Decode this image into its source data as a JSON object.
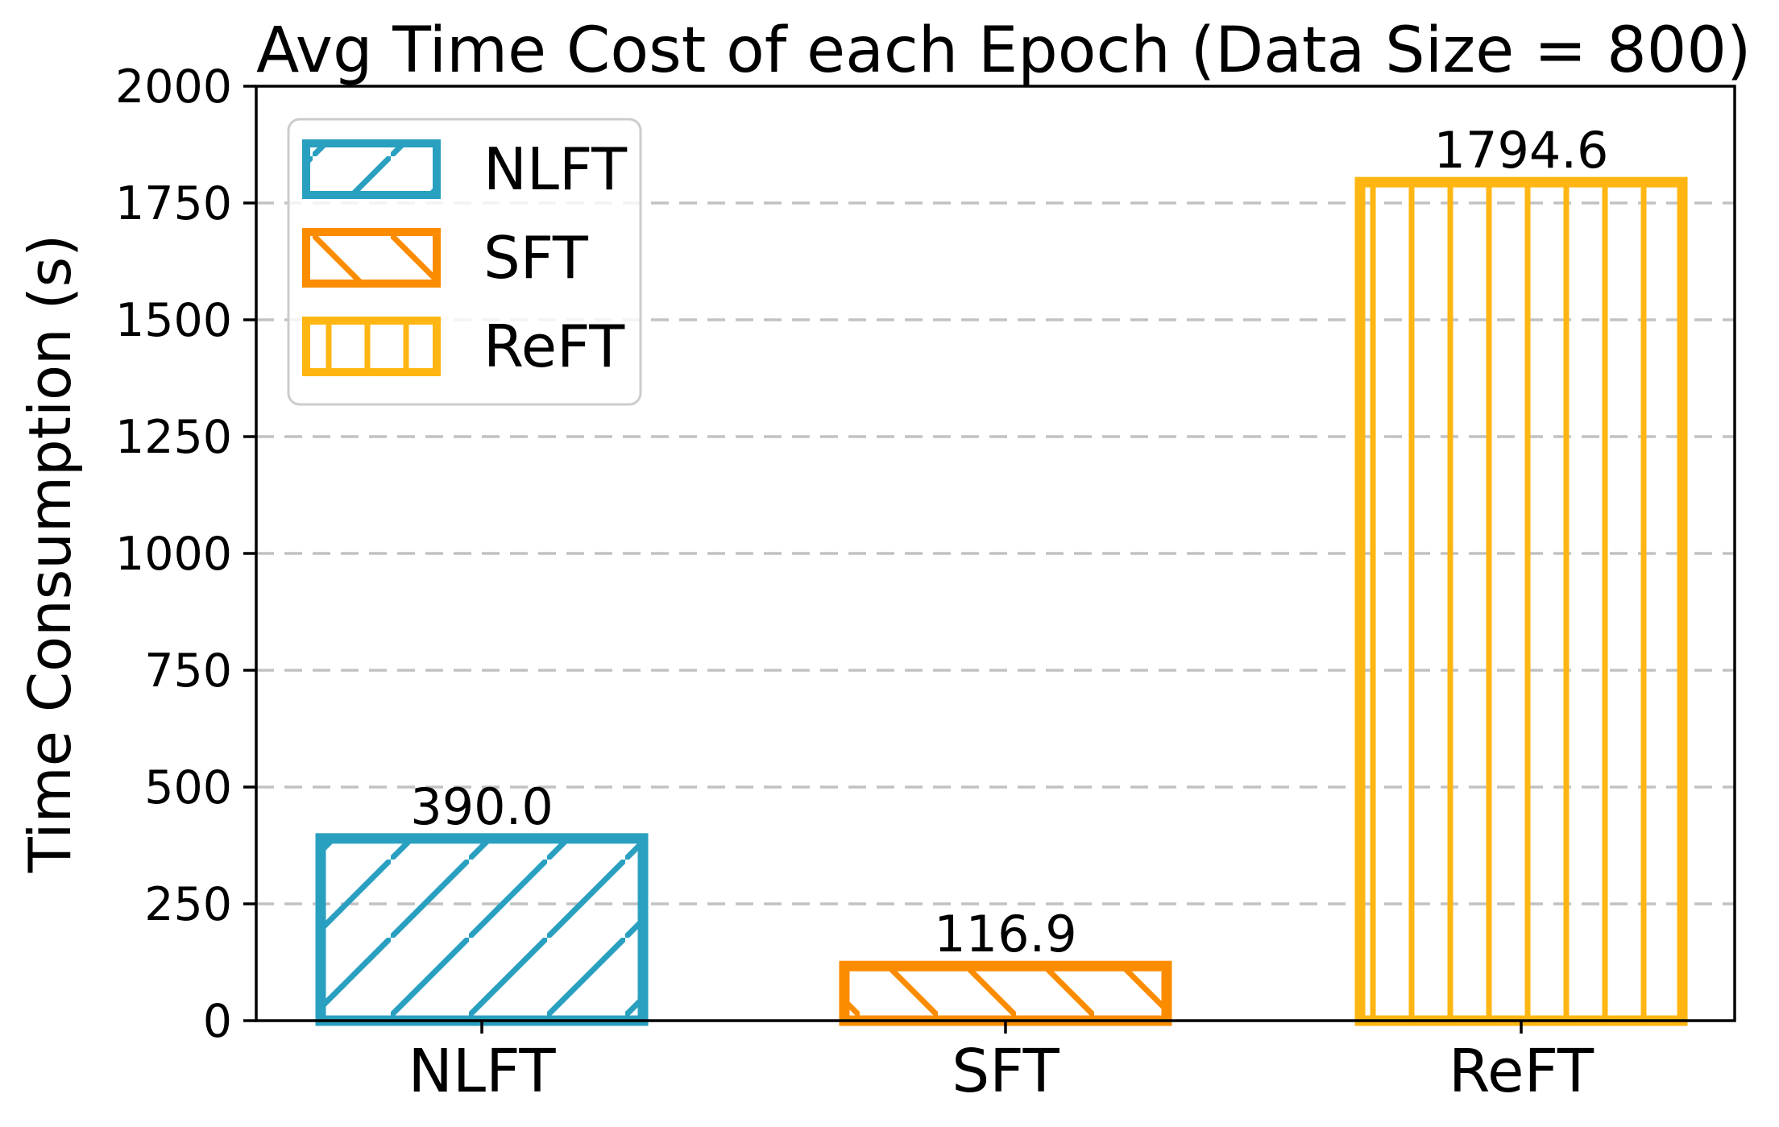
{
  "figure": {
    "background": "#ffffff"
  },
  "chart_data": {
    "type": "bar",
    "title": "Avg Time Cost of each Epoch (Data Size = 800)",
    "ylabel": "Time Consumption (s)",
    "xlabel": "",
    "categories": [
      "NLFT",
      "SFT",
      "ReFT"
    ],
    "values": [
      390.0,
      116.9,
      1794.6
    ],
    "bar_value_labels": [
      "390.0",
      "116.9",
      "1794.6"
    ],
    "bar_colors": [
      "#2aa0c0",
      "#fb8c00",
      "#ffb612"
    ],
    "bar_hatches": [
      "/",
      "\\",
      "|"
    ],
    "bar_fill": "none",
    "ylim": [
      0,
      2000
    ],
    "yticks": [
      0,
      250,
      500,
      750,
      1000,
      1250,
      1500,
      1750,
      2000
    ],
    "grid": {
      "axis": "y",
      "style": "dashed",
      "color": "#c2c2c2"
    },
    "legend": {
      "position": "upper left",
      "entries": [
        {
          "label": "NLFT",
          "color": "#2aa0c0",
          "hatch": "/"
        },
        {
          "label": "SFT",
          "color": "#fb8c00",
          "hatch": "\\"
        },
        {
          "label": "ReFT",
          "color": "#ffb612",
          "hatch": "|"
        }
      ]
    },
    "axis_color": "#000000",
    "text_color": "#000000"
  }
}
